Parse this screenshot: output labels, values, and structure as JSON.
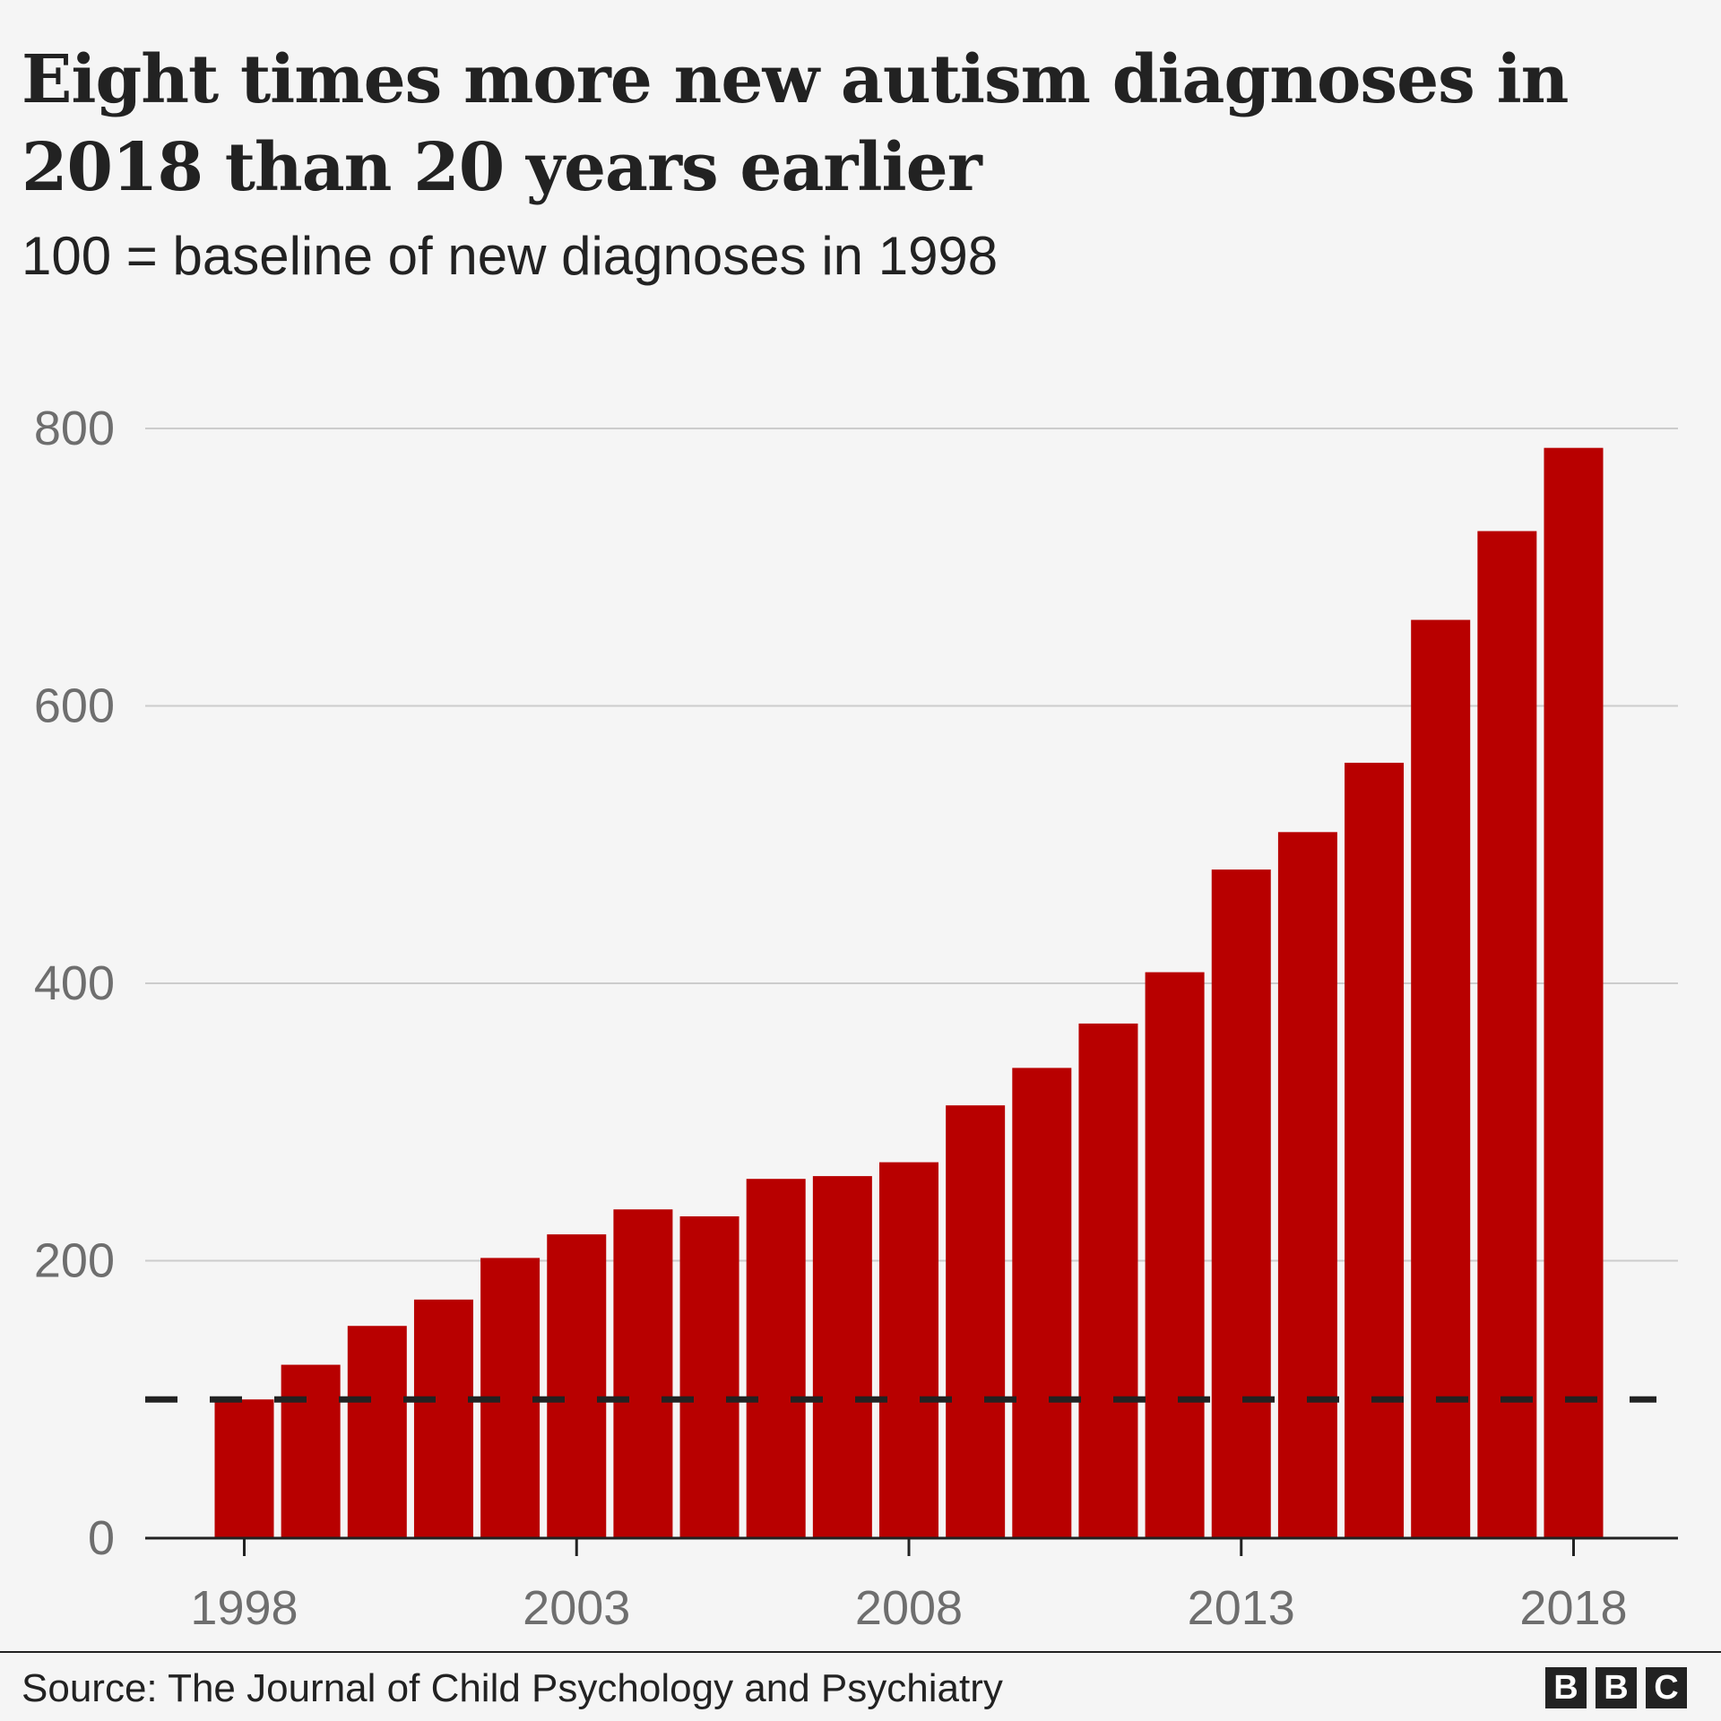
{
  "title": "Eight times more new autism diagnoses in 2018 than 20 years earlier",
  "subtitle": "100 = baseline of new diagnoses in 1998",
  "source": "Source: The Journal of Child Psychology and Psychiatry",
  "logo": [
    "B",
    "B",
    "C"
  ],
  "colors": {
    "bar": "#b80000",
    "baseline": "#222222",
    "grid": "#cccccc",
    "tick_text": "#6e6e6e",
    "background": "#f5f5f5"
  },
  "chart_data": {
    "type": "bar",
    "categories": [
      "1998",
      "1999",
      "2000",
      "2001",
      "2002",
      "2003",
      "2004",
      "2005",
      "2006",
      "2007",
      "2008",
      "2009",
      "2010",
      "2011",
      "2012",
      "2013",
      "2014",
      "2015",
      "2016",
      "2017",
      "2018"
    ],
    "values": [
      100,
      125,
      153,
      172,
      202,
      219,
      237,
      232,
      259,
      261,
      271,
      312,
      339,
      371,
      408,
      482,
      509,
      559,
      662,
      726,
      786
    ],
    "xticks": [
      "1998",
      "2003",
      "2008",
      "2013",
      "2018"
    ],
    "ylim": [
      0,
      800
    ],
    "yticks": [
      0,
      200,
      400,
      600,
      800
    ],
    "reference_line": 100,
    "grid": true,
    "xlabel": "",
    "ylabel": ""
  }
}
